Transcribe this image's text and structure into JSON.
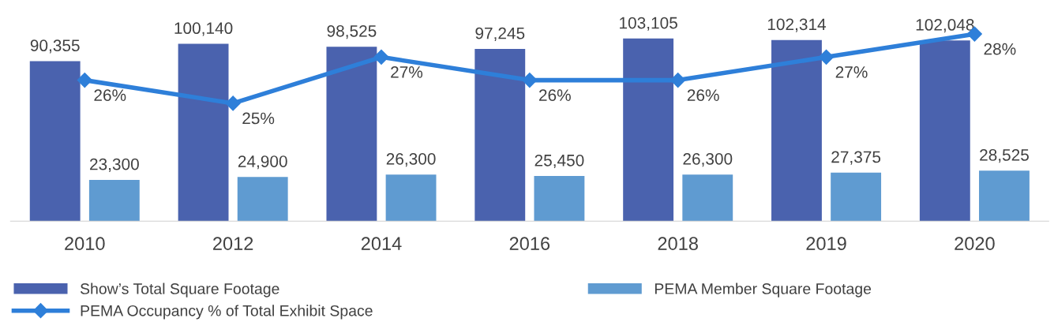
{
  "chart_data": {
    "type": "bar",
    "categories": [
      "2010",
      "2012",
      "2014",
      "2016",
      "2018",
      "2019",
      "2020"
    ],
    "legend": "bottom",
    "grid": false,
    "tick_labels": "x",
    "series": [
      {
        "name": "Show’s Total Square Footage",
        "color": "#4a62ae",
        "values": [
          90355,
          100140,
          98525,
          97245,
          103105,
          102314,
          102048
        ],
        "value_labels": [
          "90,355",
          "100,140",
          "98,525",
          "97,245",
          "103,105",
          "102,314",
          "102,048"
        ]
      },
      {
        "name": "PEMA Member Square Footage",
        "color": "#5f9bd1",
        "values": [
          23300,
          24900,
          26300,
          25450,
          26300,
          27375,
          28525
        ],
        "value_labels": [
          "23,300",
          "24,900",
          "26,300",
          "25,450",
          "26,300",
          "27,375",
          "28,525"
        ]
      },
      {
        "name": "PEMA Occupancy % of Total Exhibit Space",
        "type": "line",
        "axis": "y2",
        "color": "#2e7fd9",
        "marker": "diamond",
        "values": [
          26,
          25,
          27,
          26,
          26,
          27,
          28
        ],
        "value_labels": [
          "26%",
          "25%",
          "27%",
          "26%",
          "26%",
          "27%",
          "28%"
        ]
      }
    ]
  }
}
